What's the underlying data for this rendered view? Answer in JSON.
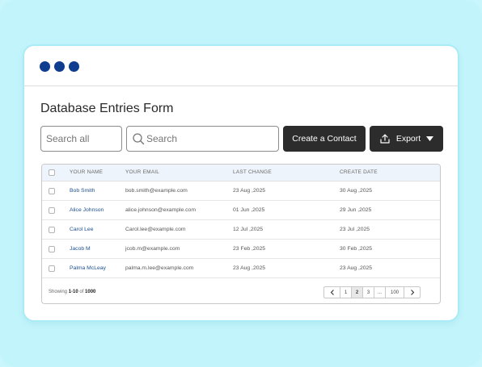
{
  "window": {
    "dots": [
      "window-dot",
      "window-dot",
      "window-dot"
    ]
  },
  "form": {
    "title": "Database Entries Form"
  },
  "toolbar": {
    "search_all_placeholder": "Search all",
    "search_placeholder": "Search",
    "create_label": "Create a Contact",
    "export_label": "Export"
  },
  "table": {
    "headers": [
      "YOUR NAME",
      "YOUR EMAIL",
      "LAST CHANGE",
      "CREATE DATE"
    ],
    "rows": [
      {
        "name": "Bob Smith",
        "email": "bob.smith@example.com",
        "last_change": "23 Aug ,2025",
        "create_date": "30 Aug ,2025"
      },
      {
        "name": "Alice Johnson",
        "email": "alice.johnson@example.com",
        "last_change": "01 Jun ,2025",
        "create_date": "29 Jun ,2025"
      },
      {
        "name": "Carol Lee",
        "email": "Carol.lee@example.com",
        "last_change": "12 Jul ,2025",
        "create_date": "23 Jul ,2025"
      },
      {
        "name": "Jacob M",
        "email": "jcob.m@example.com",
        "last_change": "23 Feb ,2025",
        "create_date": "30 Feb ,2025"
      },
      {
        "name": "Palma McLeay",
        "email": "palma.m.lee@example.com",
        "last_change": "23 Aug ,2025",
        "create_date": "23 Aug ,2025"
      }
    ]
  },
  "footer": {
    "showing_prefix": "Showing ",
    "range": "1-10",
    "of_word": " of ",
    "total": "1000",
    "pages": [
      "1",
      "2",
      "3",
      "...",
      "100"
    ],
    "active_page": "2"
  },
  "colors": {
    "accent": "#0f3d8f",
    "button_bg": "#2c2c2c",
    "background": "#c2f4fb",
    "link": "#1c4f8f"
  }
}
